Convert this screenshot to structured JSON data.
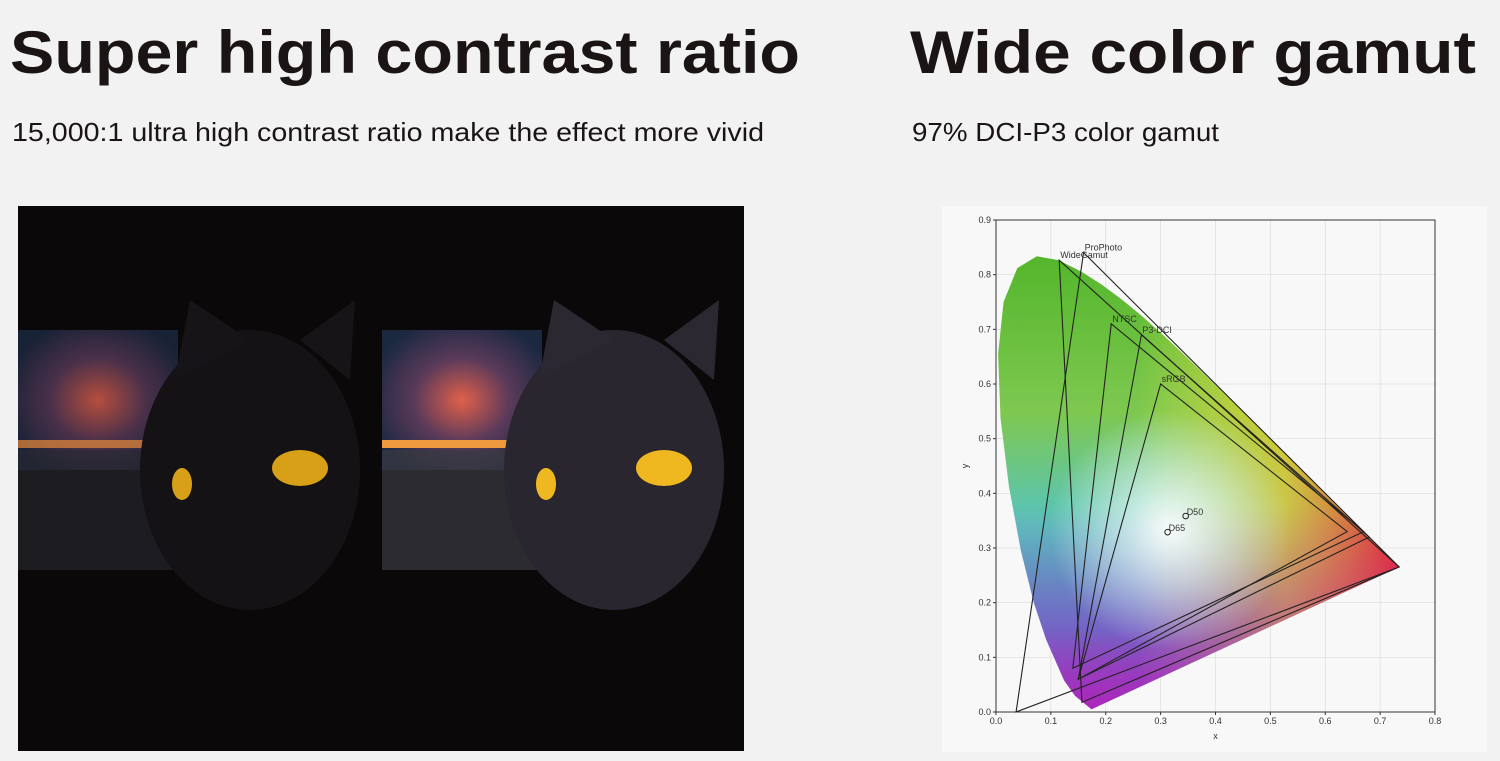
{
  "left": {
    "title": "Super high contrast ratio",
    "subtitle": "15,000:1 ultra high contrast ratio make the effect more vivid"
  },
  "right": {
    "title": "Wide color gamut",
    "subtitle": "97% DCI-P3 color gamut"
  },
  "chart_data": {
    "type": "gamut",
    "x_label": "x",
    "y_label": "y",
    "xlim": [
      0,
      0.8
    ],
    "ylim": [
      0,
      0.9
    ],
    "xticks": [
      {
        "value": 0,
        "label": "0.0"
      },
      0.1,
      0.2,
      0.3,
      0.4,
      0.5,
      0.6,
      0.7,
      0.8
    ],
    "yticks": [
      {
        "value": 0,
        "label": "0.0"
      },
      0.1,
      0.2,
      0.3,
      0.4,
      0.5,
      0.6,
      0.7,
      0.8,
      0.9
    ],
    "grid": true,
    "series": [
      {
        "name": "ProPhoto",
        "x": [
          0.7347,
          0.1596,
          0.0366
        ],
        "y": [
          0.2653,
          0.8404,
          0.0001
        ]
      },
      {
        "name": "WideGamut",
        "x": [
          0.7347,
          0.1152,
          0.1566
        ],
        "y": [
          0.2653,
          0.8264,
          0.0177
        ]
      },
      {
        "name": "NTSC",
        "x": [
          0.67,
          0.21,
          0.14
        ],
        "y": [
          0.33,
          0.71,
          0.08
        ]
      },
      {
        "name": "P3-DCI",
        "x": [
          0.68,
          0.265,
          0.15
        ],
        "y": [
          0.32,
          0.69,
          0.06
        ]
      },
      {
        "name": "sRGB",
        "x": [
          0.64,
          0.3,
          0.15
        ],
        "y": [
          0.33,
          0.6,
          0.06
        ]
      }
    ],
    "points": [
      {
        "name": "D50",
        "x": 0.3457,
        "y": 0.3585
      },
      {
        "name": "D65",
        "x": 0.3127,
        "y": 0.329
      }
    ]
  }
}
